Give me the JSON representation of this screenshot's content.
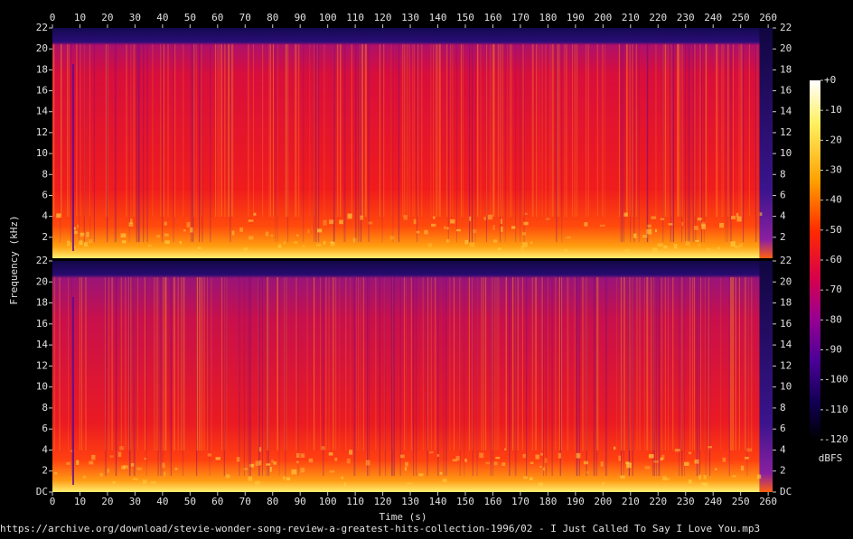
{
  "chart_data": {
    "type": "spectrogram",
    "x_label": "Time (s)",
    "y_label": "Frequency (kHz)",
    "xlim": [
      0,
      261.6
    ],
    "xticks": [
      0,
      10,
      20,
      30,
      40,
      50,
      60,
      70,
      80,
      90,
      100,
      110,
      120,
      130,
      140,
      150,
      160,
      170,
      180,
      190,
      200,
      210,
      220,
      230,
      240,
      250,
      260
    ],
    "ylim": [
      0,
      22
    ],
    "yticks_top": [
      2,
      4,
      6,
      8,
      10,
      12,
      14,
      16,
      18,
      20,
      22
    ],
    "yticks_bottom": [
      {
        "value": 0,
        "label": "DC"
      },
      2,
      4,
      6,
      8,
      10,
      12,
      14,
      16,
      18,
      20,
      22
    ],
    "colorbar_lim": [
      -120,
      0
    ],
    "colorbar_ticks": [
      {
        "value": 0,
        "label": "+0"
      },
      -10,
      -20,
      -30,
      -40,
      -50,
      -60,
      -70,
      -80,
      -90,
      -100,
      -110,
      -120
    ],
    "colorbar_label": "dBFS",
    "footer": "https://archive.org/download/stevie-wonder-song-review-a-greatest-hits-collection-1996/02 - I Just Called To Say I Love You.mp3"
  }
}
